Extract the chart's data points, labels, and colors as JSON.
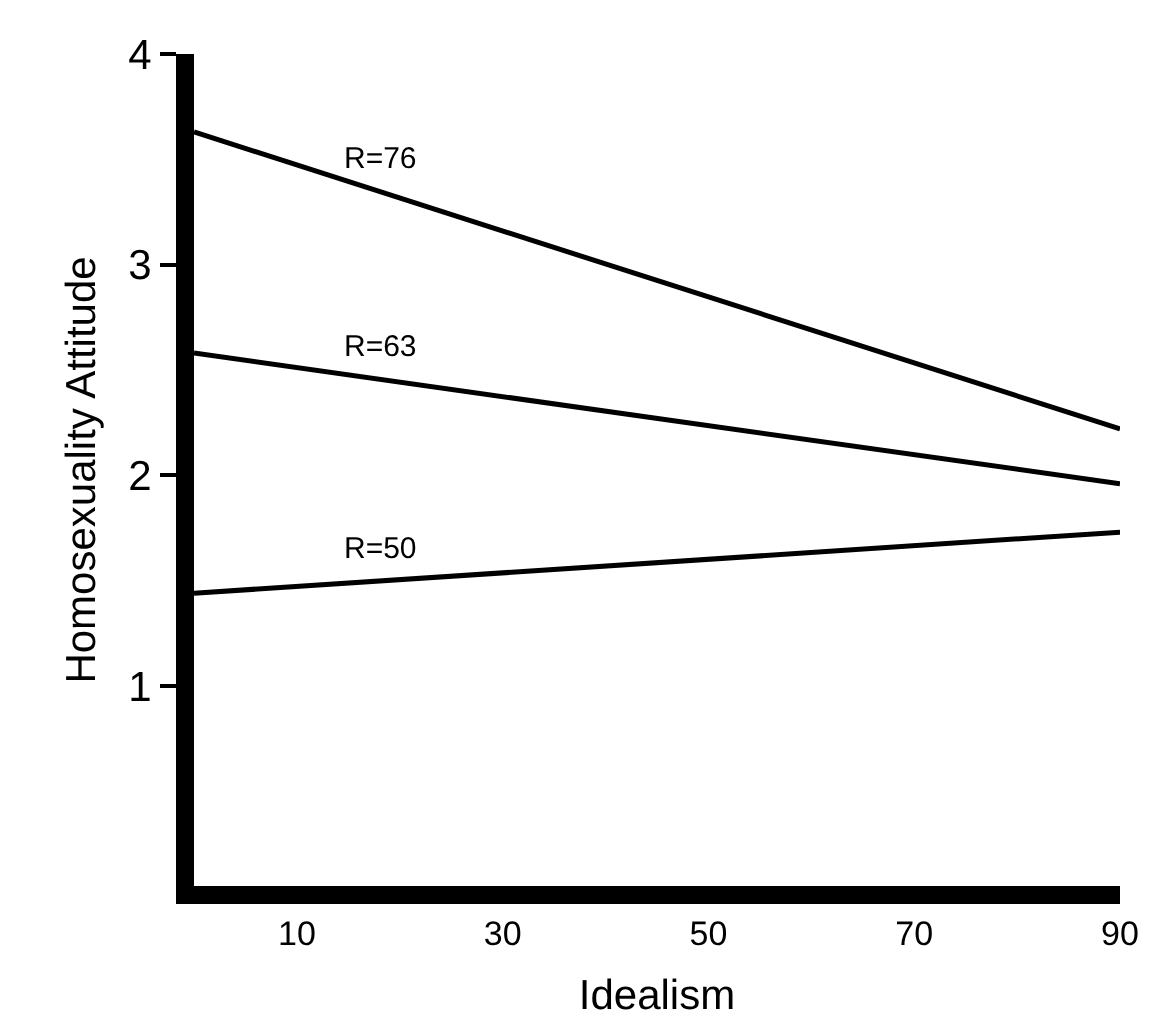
{
  "chart_data": {
    "type": "line",
    "xlabel": "Idealism",
    "ylabel": "Homosexuality Attitude",
    "x": [
      0,
      90
    ],
    "xlim": [
      0,
      90
    ],
    "ylim": [
      0.05,
      4
    ],
    "xticks": [
      10,
      30,
      50,
      70,
      90
    ],
    "yticks": [
      1,
      2,
      3,
      4
    ],
    "grid": false,
    "marker": "none",
    "line_style": "solid",
    "series": [
      {
        "name": "R=76",
        "color": "#000000",
        "values": [
          3.63,
          2.22
        ]
      },
      {
        "name": "R=63",
        "color": "#000000",
        "values": [
          2.58,
          1.96
        ]
      },
      {
        "name": "R=50",
        "color": "#000000",
        "values": [
          1.44,
          1.73
        ]
      }
    ]
  }
}
